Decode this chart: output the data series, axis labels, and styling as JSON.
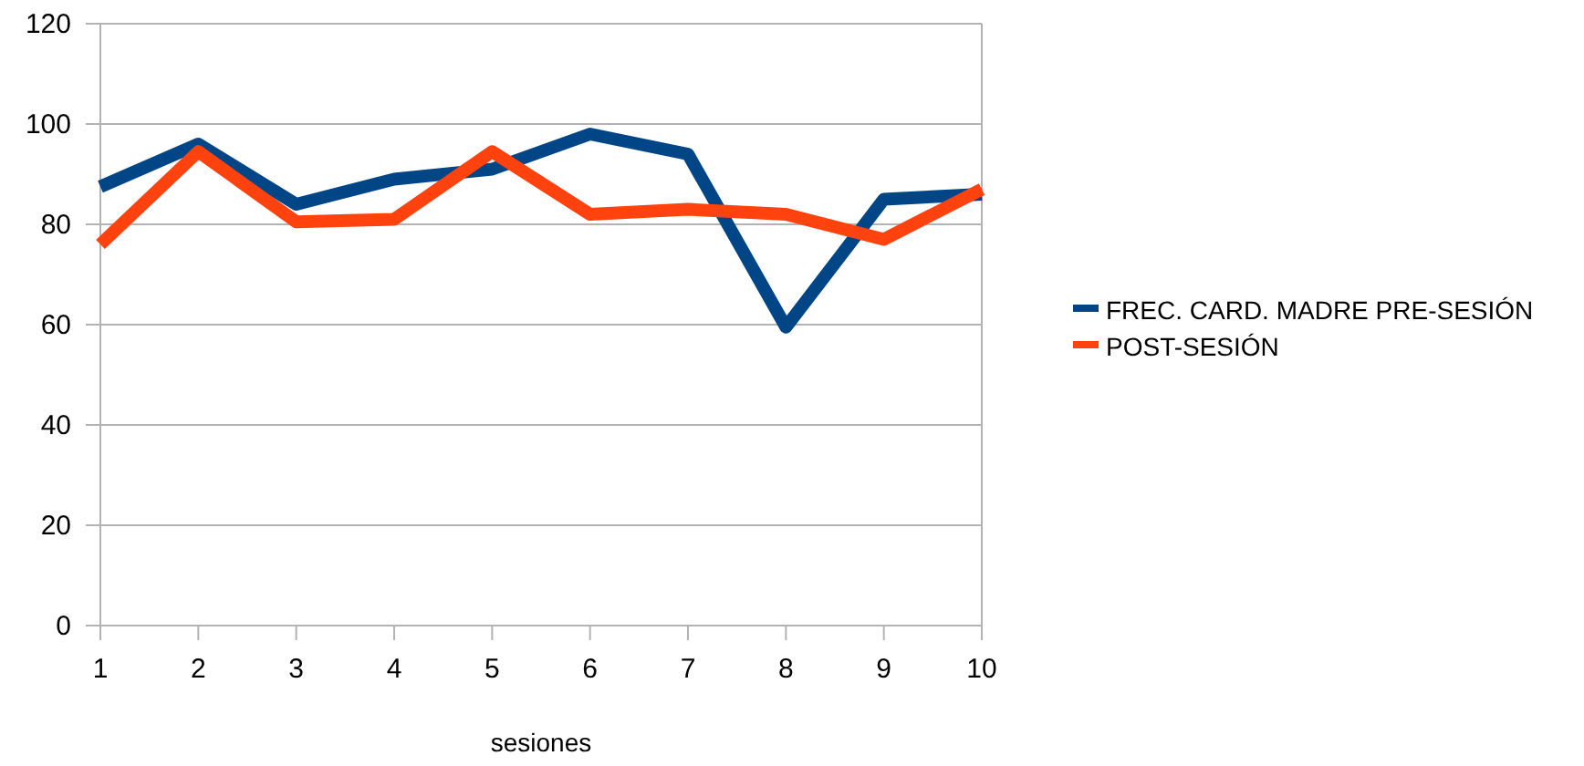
{
  "chart_data": {
    "type": "line",
    "xlabel": "sesiones",
    "categories": [
      "1",
      "2",
      "3",
      "4",
      "5",
      "6",
      "7",
      "8",
      "9",
      "10"
    ],
    "series": [
      {
        "name": "FREC. CARD. MADRE PRE-SESIÓN",
        "color": "#004586",
        "values": [
          87.5,
          96,
          84,
          89,
          91,
          98,
          94,
          59.5,
          85,
          86
        ]
      },
      {
        "name": "POST-SESIÓN",
        "color": "#ff420e",
        "values": [
          76,
          94.5,
          80.5,
          81,
          94.5,
          82,
          83,
          82,
          77,
          87
        ]
      }
    ],
    "ylim": [
      0,
      120
    ],
    "yticks": [
      0,
      20,
      40,
      60,
      80,
      100,
      120
    ],
    "grid": "y",
    "legend": "right",
    "marker": "none",
    "line_style": "solid"
  }
}
